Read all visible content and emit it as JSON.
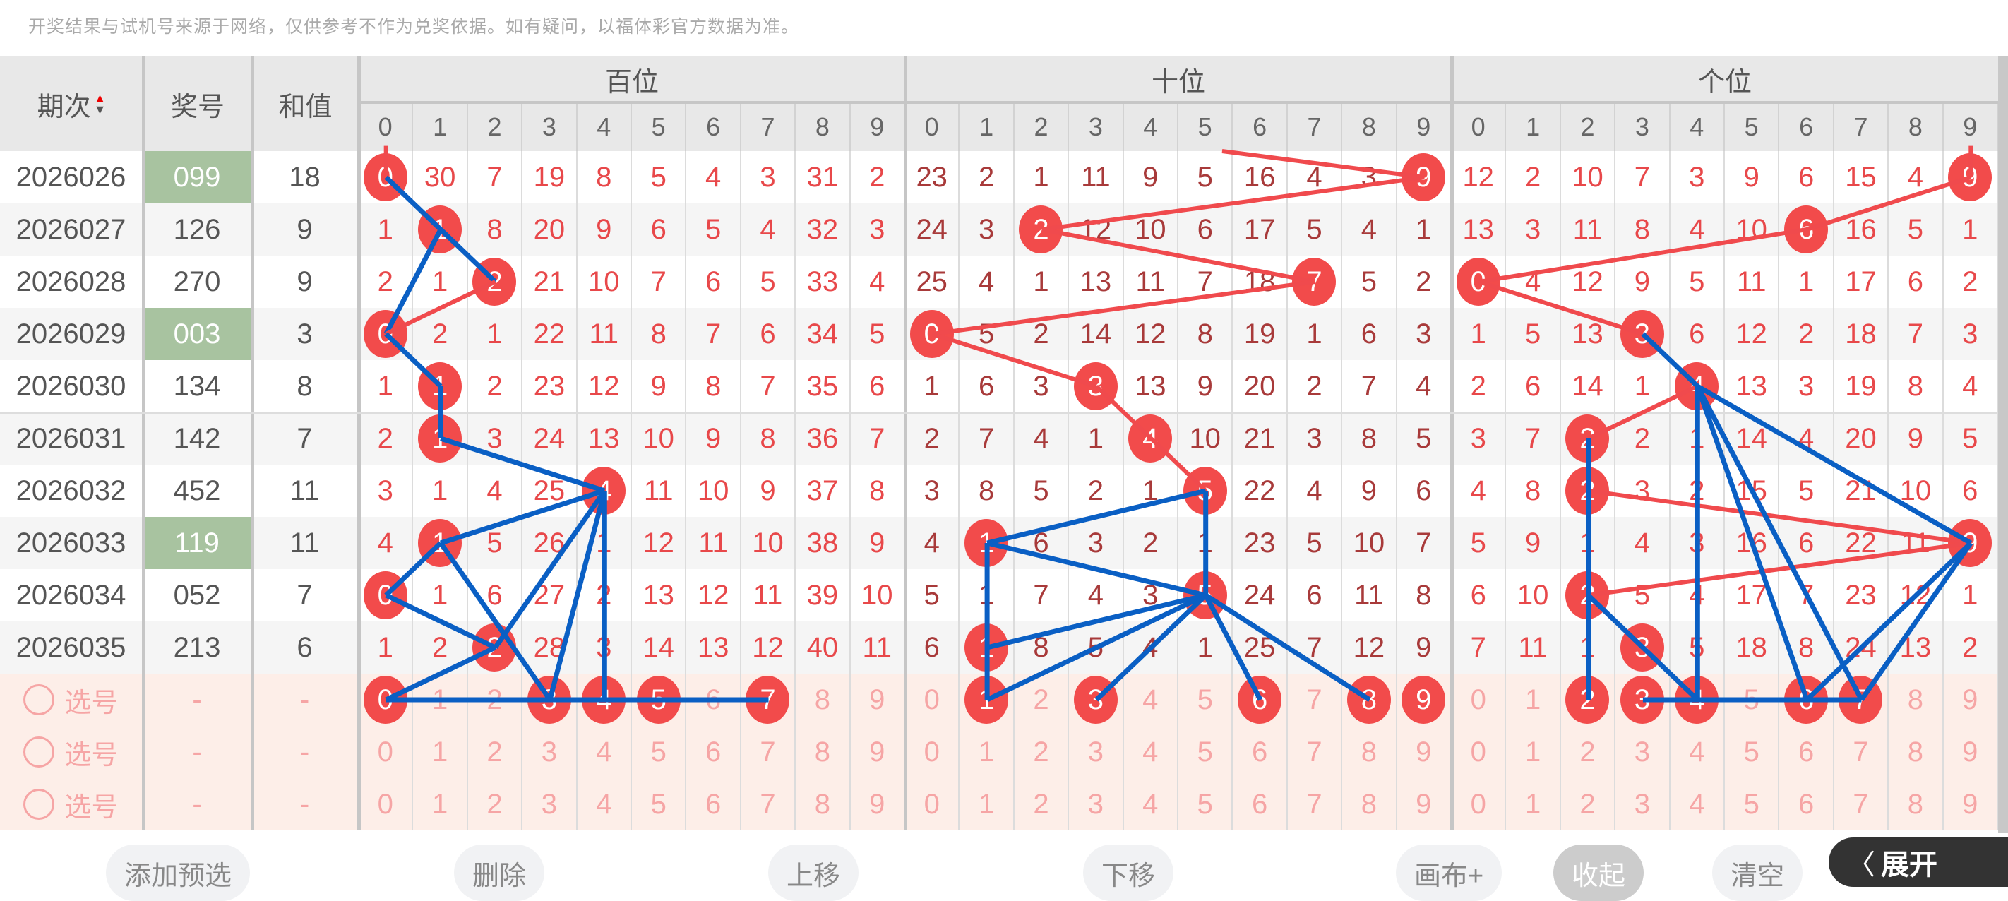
{
  "notice": "开奖结果与试机号来源于网络，仅供参考不作为兑奖依据。如有疑问，以福体彩官方数据为准。",
  "header": {
    "period": "期次",
    "number": "奖号",
    "sum": "和值",
    "groups": [
      "百位",
      "十位",
      "个位"
    ],
    "digits": [
      "0",
      "1",
      "2",
      "3",
      "4",
      "5",
      "6",
      "7",
      "8",
      "9"
    ],
    "sort_icon": "sort-up-down-icon"
  },
  "rows": [
    {
      "period": "2026026",
      "number": "099",
      "sum": "18",
      "highlight": true,
      "h": [
        "0",
        "30",
        "7",
        "19",
        "8",
        "5",
        "4",
        "3",
        "31",
        "2"
      ],
      "t": [
        "23",
        "2",
        "1",
        "11",
        "9",
        "5",
        "16",
        "4",
        "3",
        "9"
      ],
      "u": [
        "12",
        "2",
        "10",
        "7",
        "3",
        "9",
        "6",
        "15",
        "4",
        "9"
      ]
    },
    {
      "period": "2026027",
      "number": "126",
      "sum": "9",
      "highlight": false,
      "h": [
        "1",
        "1",
        "8",
        "20",
        "9",
        "6",
        "5",
        "4",
        "32",
        "3"
      ],
      "t": [
        "24",
        "3",
        "2",
        "12",
        "10",
        "6",
        "17",
        "5",
        "4",
        "1"
      ],
      "u": [
        "13",
        "3",
        "11",
        "8",
        "4",
        "10",
        "6",
        "16",
        "5",
        "1"
      ]
    },
    {
      "period": "2026028",
      "number": "270",
      "sum": "9",
      "highlight": false,
      "h": [
        "2",
        "1",
        "2",
        "21",
        "10",
        "7",
        "6",
        "5",
        "33",
        "4"
      ],
      "t": [
        "25",
        "4",
        "1",
        "13",
        "11",
        "7",
        "18",
        "7",
        "5",
        "2"
      ],
      "u": [
        "0",
        "4",
        "12",
        "9",
        "5",
        "11",
        "1",
        "17",
        "6",
        "2"
      ]
    },
    {
      "period": "2026029",
      "number": "003",
      "sum": "3",
      "highlight": true,
      "h": [
        "0",
        "2",
        "1",
        "22",
        "11",
        "8",
        "7",
        "6",
        "34",
        "5"
      ],
      "t": [
        "0",
        "5",
        "2",
        "14",
        "12",
        "8",
        "19",
        "1",
        "6",
        "3"
      ],
      "u": [
        "1",
        "5",
        "13",
        "3",
        "6",
        "12",
        "2",
        "18",
        "7",
        "3"
      ]
    },
    {
      "period": "2026030",
      "number": "134",
      "sum": "8",
      "highlight": false,
      "h": [
        "1",
        "1",
        "2",
        "23",
        "12",
        "9",
        "8",
        "7",
        "35",
        "6"
      ],
      "t": [
        "1",
        "6",
        "3",
        "3",
        "13",
        "9",
        "20",
        "2",
        "7",
        "4"
      ],
      "u": [
        "2",
        "6",
        "14",
        "1",
        "4",
        "13",
        "3",
        "19",
        "8",
        "4"
      ]
    },
    {
      "period": "2026031",
      "number": "142",
      "sum": "7",
      "highlight": false,
      "h": [
        "2",
        "1",
        "3",
        "24",
        "13",
        "10",
        "9",
        "8",
        "36",
        "7"
      ],
      "t": [
        "2",
        "7",
        "4",
        "1",
        "4",
        "10",
        "21",
        "3",
        "8",
        "5"
      ],
      "u": [
        "3",
        "7",
        "2",
        "2",
        "1",
        "14",
        "4",
        "20",
        "9",
        "5"
      ]
    },
    {
      "period": "2026032",
      "number": "452",
      "sum": "11",
      "highlight": false,
      "h": [
        "3",
        "1",
        "4",
        "25",
        "4",
        "11",
        "10",
        "9",
        "37",
        "8"
      ],
      "t": [
        "3",
        "8",
        "5",
        "2",
        "1",
        "5",
        "22",
        "4",
        "9",
        "6"
      ],
      "u": [
        "4",
        "8",
        "2",
        "3",
        "2",
        "15",
        "5",
        "21",
        "10",
        "6"
      ]
    },
    {
      "period": "2026033",
      "number": "119",
      "sum": "11",
      "highlight": true,
      "h": [
        "4",
        "1",
        "5",
        "26",
        "1",
        "12",
        "11",
        "10",
        "38",
        "9"
      ],
      "t": [
        "4",
        "1",
        "6",
        "3",
        "2",
        "1",
        "23",
        "5",
        "10",
        "7"
      ],
      "u": [
        "5",
        "9",
        "1",
        "4",
        "3",
        "16",
        "6",
        "22",
        "11",
        "9"
      ]
    },
    {
      "period": "2026034",
      "number": "052",
      "sum": "7",
      "highlight": false,
      "h": [
        "0",
        "1",
        "6",
        "27",
        "2",
        "13",
        "12",
        "11",
        "39",
        "10"
      ],
      "t": [
        "5",
        "1",
        "7",
        "4",
        "3",
        "5",
        "24",
        "6",
        "11",
        "8"
      ],
      "u": [
        "6",
        "10",
        "2",
        "5",
        "4",
        "17",
        "7",
        "23",
        "12",
        "1"
      ]
    },
    {
      "period": "2026035",
      "number": "213",
      "sum": "6",
      "highlight": false,
      "h": [
        "1",
        "2",
        "2",
        "28",
        "3",
        "14",
        "13",
        "12",
        "40",
        "11"
      ],
      "t": [
        "6",
        "1",
        "8",
        "5",
        "4",
        "1",
        "25",
        "7",
        "12",
        "9"
      ],
      "u": [
        "7",
        "11",
        "1",
        "3",
        "5",
        "18",
        "8",
        "24",
        "13",
        "2"
      ]
    }
  ],
  "selection_rows": [
    {
      "label": "选号",
      "number": "-",
      "sum": "-",
      "selected_h": [
        0,
        3,
        4,
        5,
        7
      ],
      "selected_t": [
        1,
        3,
        6,
        8,
        9
      ],
      "selected_u": [
        2,
        3,
        4,
        6,
        7
      ]
    },
    {
      "label": "选号",
      "number": "-",
      "sum": "-",
      "selected_h": [],
      "selected_t": [],
      "selected_u": []
    },
    {
      "label": "选号",
      "number": "-",
      "sum": "-",
      "selected_h": [],
      "selected_t": [],
      "selected_u": []
    }
  ],
  "buttons": {
    "add": "添加预选",
    "delete": "删除",
    "up": "上移",
    "down": "下移",
    "canvas": "画布+",
    "clear": "清空",
    "collapse": "收起",
    "expand": "展开"
  },
  "colors": {
    "ball": "#f24b4b",
    "line_red": "#f04a4d",
    "line_blue": "#0a5fc4",
    "highlight_green": "#a8c3a0",
    "selection_bg": "#fdeee8"
  }
}
